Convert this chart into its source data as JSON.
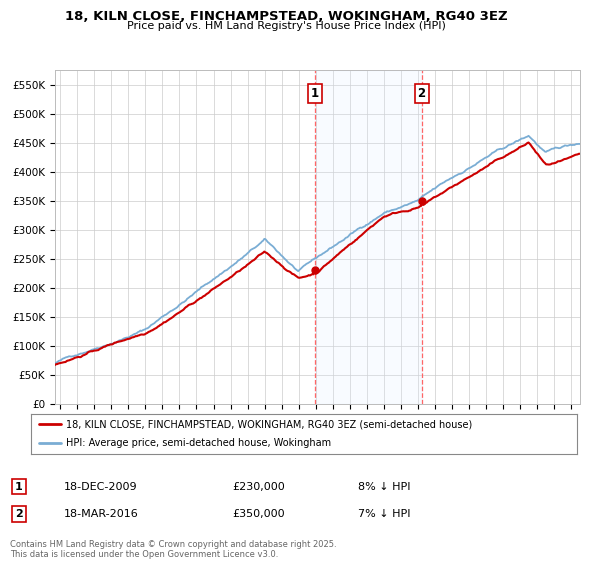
{
  "title": "18, KILN CLOSE, FINCHAMPSTEAD, WOKINGHAM, RG40 3EZ",
  "subtitle": "Price paid vs. HM Land Registry's House Price Index (HPI)",
  "ylabel_ticks": [
    "£0",
    "£50K",
    "£100K",
    "£150K",
    "£200K",
    "£250K",
    "£300K",
    "£350K",
    "£400K",
    "£450K",
    "£500K",
    "£550K"
  ],
  "ytick_values": [
    0,
    50000,
    100000,
    150000,
    200000,
    250000,
    300000,
    350000,
    400000,
    450000,
    500000,
    550000
  ],
  "ylim": [
    0,
    575000
  ],
  "xlim_start": 1994.7,
  "xlim_end": 2025.5,
  "xticks": [
    1995,
    1996,
    1997,
    1998,
    1999,
    2000,
    2001,
    2002,
    2003,
    2004,
    2005,
    2006,
    2007,
    2008,
    2009,
    2010,
    2011,
    2012,
    2013,
    2014,
    2015,
    2016,
    2017,
    2018,
    2019,
    2020,
    2021,
    2022,
    2023,
    2024,
    2025
  ],
  "sale1_date": 2009.96,
  "sale1_price": 230000,
  "sale1_label": "1",
  "sale2_date": 2016.21,
  "sale2_price": 350000,
  "sale2_label": "2",
  "line1_color": "#cc0000",
  "line2_color": "#7aadd4",
  "shade_color": "#ddeeff",
  "vline_color": "#ff6666",
  "marker_color": "#cc0000",
  "legend_line1": "18, KILN CLOSE, FINCHAMPSTEAD, WOKINGHAM, RG40 3EZ (semi-detached house)",
  "legend_line2": "HPI: Average price, semi-detached house, Wokingham",
  "footer": "Contains HM Land Registry data © Crown copyright and database right 2025.\nThis data is licensed under the Open Government Licence v3.0.",
  "bg_color": "#ffffff",
  "grid_color": "#cccccc"
}
